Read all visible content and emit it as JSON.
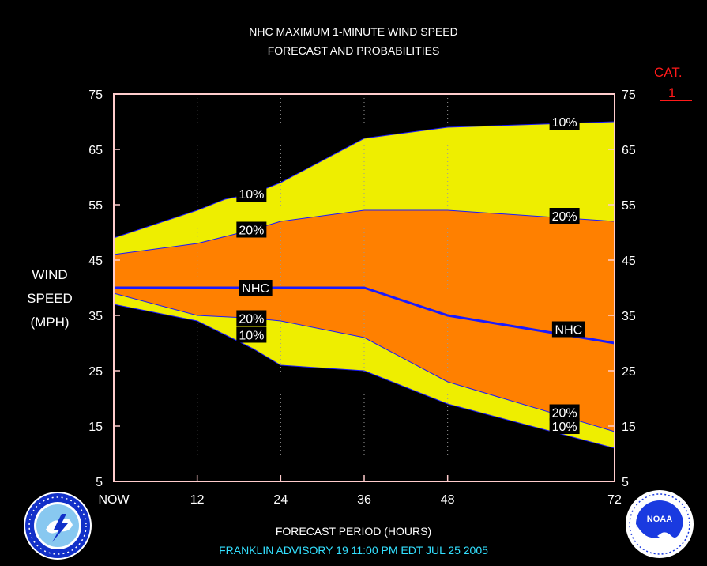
{
  "title_line1": "NHC MAXIMUM 1-MINUTE WIND SPEED",
  "title_line2": "FORECAST AND PROBABILITIES",
  "y_title_lines": [
    "WIND",
    "SPEED",
    "(MPH)"
  ],
  "category": {
    "label": "CAT.",
    "value": "1"
  },
  "x_title": "FORECAST PERIOD (HOURS)",
  "advisory_text": "FRANKLIN   ADVISORY  19 11:00  PM  EDT  JUL  25  2005",
  "logos": {
    "left": "national-weather-service-logo",
    "right": "noaa-logo"
  },
  "colors": {
    "background": "#000000",
    "band_10": "#eeee00",
    "band_20": "#ff8000",
    "nhc_line": "#1a1aff",
    "frame": "#ffcccc",
    "category": "#ff1a1a",
    "advisory": "#33e0ff"
  },
  "chart_data": {
    "type": "area",
    "x": [
      0,
      12,
      24,
      36,
      48,
      72
    ],
    "x_tick_labels": [
      "NOW",
      "12",
      "24",
      "36",
      "48",
      "72"
    ],
    "xlim": [
      0,
      72
    ],
    "ylim": [
      5,
      75
    ],
    "y_ticks": [
      5,
      15,
      25,
      35,
      45,
      55,
      65,
      75
    ],
    "grid": "vertical dotted at x ticks",
    "series": [
      {
        "name": "10%",
        "role": "upper",
        "points": [
          [
            0,
            49
          ],
          [
            12,
            54
          ],
          [
            16,
            56
          ],
          [
            20,
            57
          ],
          [
            24,
            59
          ],
          [
            36,
            67
          ],
          [
            48,
            69
          ],
          [
            72,
            70
          ]
        ]
      },
      {
        "name": "20%",
        "role": "upper",
        "points": [
          [
            0,
            46
          ],
          [
            12,
            48
          ],
          [
            20,
            50.5
          ],
          [
            24,
            52
          ],
          [
            36,
            54
          ],
          [
            48,
            54
          ],
          [
            72,
            52
          ]
        ]
      },
      {
        "name": "NHC",
        "points": [
          [
            0,
            40
          ],
          [
            12,
            40
          ],
          [
            24,
            40
          ],
          [
            36,
            40
          ],
          [
            48,
            35
          ],
          [
            72,
            30
          ]
        ]
      },
      {
        "name": "20%",
        "role": "lower",
        "points": [
          [
            0,
            39
          ],
          [
            12,
            35
          ],
          [
            20,
            34.5
          ],
          [
            24,
            34
          ],
          [
            36,
            31
          ],
          [
            48,
            23
          ],
          [
            72,
            14
          ]
        ]
      },
      {
        "name": "10%",
        "role": "lower",
        "points": [
          [
            0,
            37
          ],
          [
            12,
            34
          ],
          [
            16,
            31.5
          ],
          [
            20,
            29
          ],
          [
            24,
            26
          ],
          [
            36,
            25
          ],
          [
            48,
            19
          ],
          [
            72,
            11
          ]
        ]
      }
    ],
    "labels": [
      {
        "text": "10%",
        "x": 19.8,
        "y": 57
      },
      {
        "text": "20%",
        "x": 19.8,
        "y": 50.5
      },
      {
        "text": "NHC",
        "x": 20.4,
        "y": 40
      },
      {
        "text": "20%",
        "x": 19.8,
        "y": 34.5
      },
      {
        "text": "10%",
        "x": 19.8,
        "y": 31.5
      },
      {
        "text": "10%",
        "x": 64.8,
        "y": 70
      },
      {
        "text": "20%",
        "x": 64.8,
        "y": 53
      },
      {
        "text": "NHC",
        "x": 65.4,
        "y": 32.5
      },
      {
        "text": "20%",
        "x": 64.8,
        "y": 17.5
      },
      {
        "text": "10%",
        "x": 64.8,
        "y": 15
      }
    ]
  }
}
